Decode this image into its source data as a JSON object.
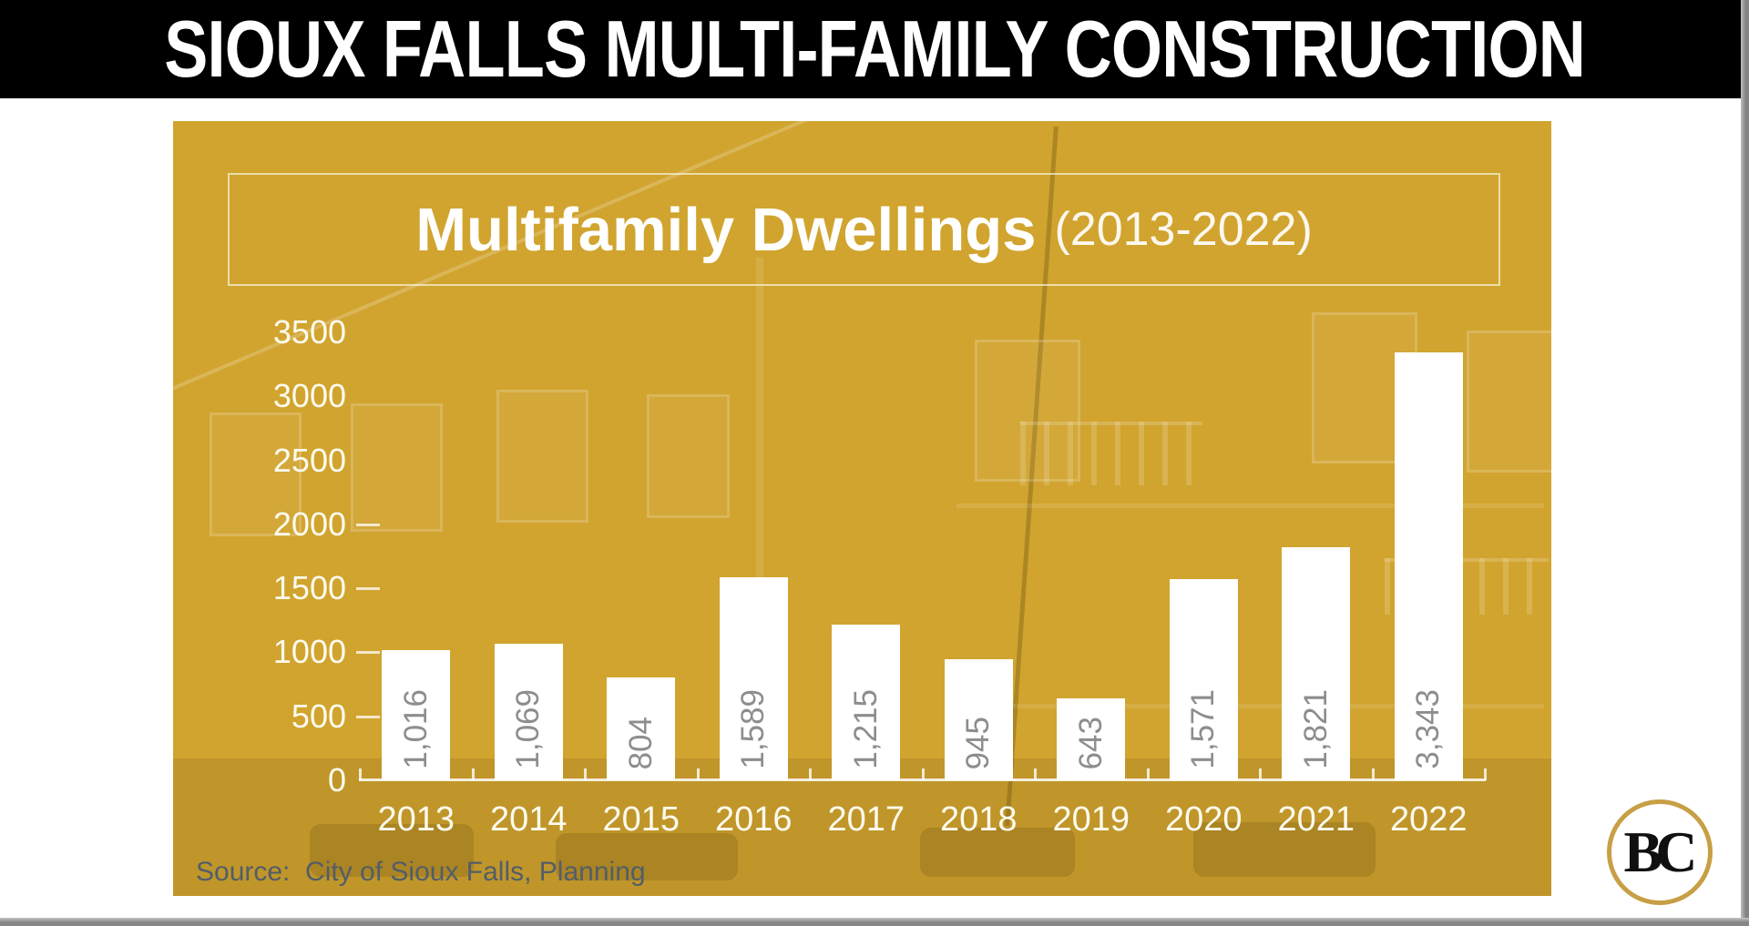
{
  "header": {
    "title": "SIOUX FALLS MULTI-FAMILY CONSTRUCTION"
  },
  "chart_data": {
    "type": "bar",
    "title": "Multifamily Dwellings",
    "subtitle": "(2013-2022)",
    "categories": [
      "2013",
      "2014",
      "2015",
      "2016",
      "2017",
      "2018",
      "2019",
      "2020",
      "2021",
      "2022"
    ],
    "values": [
      1016,
      1069,
      804,
      1589,
      1215,
      945,
      643,
      1571,
      1821,
      3343
    ],
    "value_labels": [
      "1,016",
      "1,069",
      "804",
      "1,589",
      "1,215",
      "945",
      "643",
      "1,571",
      "1,821",
      "3,343"
    ],
    "ylabel_ticks": [
      0,
      500,
      1000,
      1500,
      2000,
      2500,
      3000,
      3500
    ],
    "axis_dash_ticks": [
      500,
      1000,
      1500,
      2000
    ],
    "ylim": [
      0,
      3500
    ],
    "grid": false,
    "legend": "none",
    "bar_color": "#ffffff",
    "value_label_color": "#8d8d8d",
    "axis_text_color": "#fdfbef"
  },
  "source": {
    "label": "Source:  City of Sioux Falls, Planning"
  },
  "logo": {
    "monogram": "BC",
    "ring_color": "#c79f45"
  },
  "colors": {
    "panel_gold": "#d1a42f",
    "header_bg": "#000000",
    "header_text": "#ffffff"
  }
}
